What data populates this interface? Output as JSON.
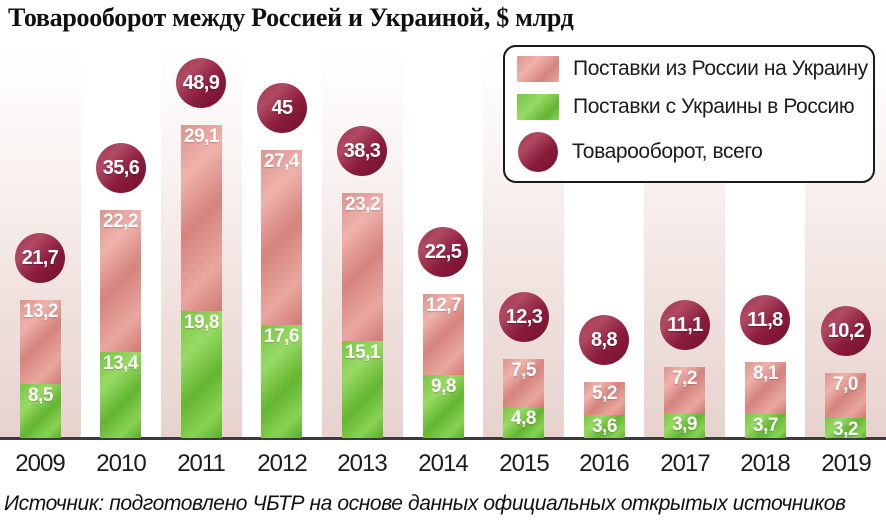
{
  "title": "Товарооборот между Россией и Украиной, $ млрд",
  "source": "Источник: подготовлено ЧБТР на основе данных официальных открытых источников",
  "colors": {
    "russia_to_ukraine_bar": "#d88d88",
    "ukraine_to_russia_bar": "#70c03a",
    "total_badge": "#8b1c3d",
    "column_stripe": "#e7d2cd",
    "axis_line": "#3c3a3a"
  },
  "legend": {
    "items": [
      {
        "label": "Поставки из России на Украину",
        "swatch": "pink-rect",
        "color": "#d88d88"
      },
      {
        "label": "Поставки с Украины в Россию",
        "swatch": "green-rect",
        "color": "#70c03a"
      },
      {
        "label": "Товарооборот, всего",
        "swatch": "maroon-circle",
        "color": "#8b1c3d"
      }
    ],
    "position": "top-right"
  },
  "chart_data": {
    "type": "bar",
    "stacked": true,
    "title": "Товарооборот между Россией и Украиной, $ млрд",
    "unit": "$ млрд",
    "categories": [
      "2009",
      "2010",
      "2011",
      "2012",
      "2013",
      "2014",
      "2015",
      "2016",
      "2017",
      "2018",
      "2019"
    ],
    "series": [
      {
        "name": "Поставки из России на Украину",
        "role": "russia-to-ukraine",
        "color": "#d88d88",
        "values": [
          13.2,
          22.2,
          29.1,
          27.4,
          23.2,
          12.7,
          7.5,
          5.2,
          7.2,
          8.1,
          7.0
        ],
        "labels": [
          "13,2",
          "22,2",
          "29,1",
          "27,4",
          "23,2",
          "12,7",
          "7,5",
          "5,2",
          "7,2",
          "8,1",
          "7,0"
        ]
      },
      {
        "name": "Поставки с Украины в Россию",
        "role": "ukraine-to-russia",
        "color": "#70c03a",
        "values": [
          8.5,
          13.4,
          19.8,
          17.6,
          15.1,
          9.8,
          4.8,
          3.6,
          3.9,
          3.7,
          3.2
        ],
        "labels": [
          "8,5",
          "13,4",
          "19,8",
          "17,6",
          "15,1",
          "9,8",
          "4,8",
          "3,6",
          "3,9",
          "3,7",
          "3,2"
        ]
      }
    ],
    "totals": {
      "name": "Товарооборот, всего",
      "color": "#8b1c3d",
      "values": [
        21.7,
        35.6,
        48.9,
        45,
        38.3,
        22.5,
        12.3,
        8.8,
        11.1,
        11.8,
        10.2
      ],
      "labels": [
        "21,7",
        "35,6",
        "48,9",
        "45",
        "38,3",
        "22,5",
        "12,3",
        "8,8",
        "11,1",
        "11,8",
        "10,2"
      ]
    },
    "ylim": [
      0,
      50
    ],
    "grid": false,
    "y_axis_shown": false,
    "striped_background_columns": [
      "2009",
      "2011",
      "2013",
      "2015",
      "2017",
      "2019"
    ],
    "legend_position": "top-right"
  }
}
